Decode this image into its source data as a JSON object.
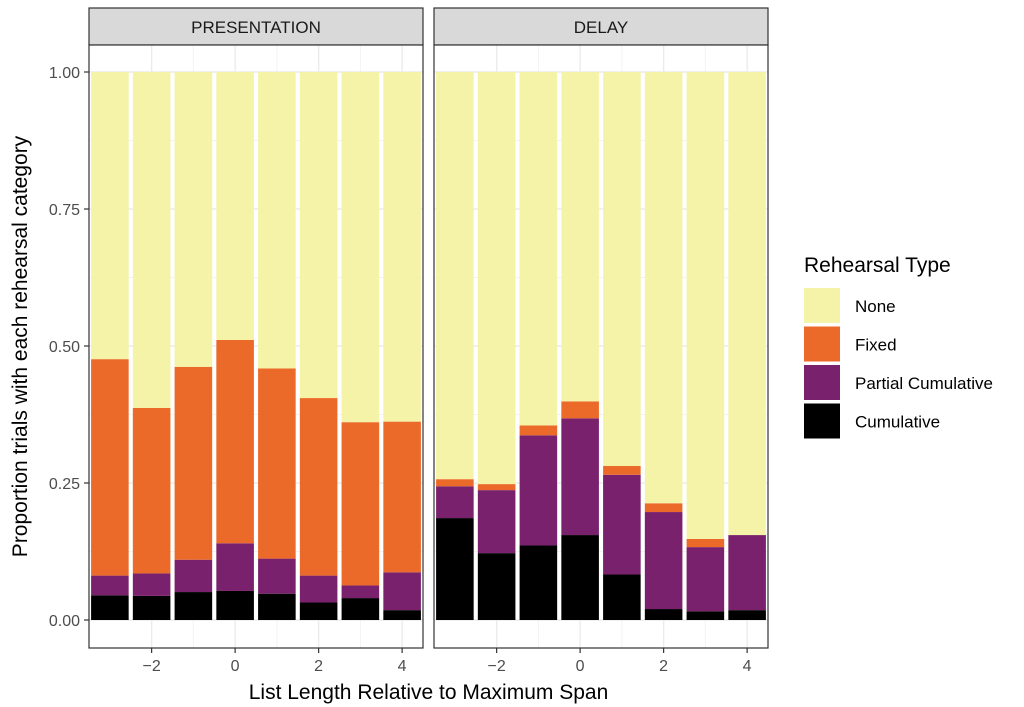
{
  "chart_data": {
    "type": "bar",
    "stacked": true,
    "facets": [
      "PRESENTATION",
      "DELAY"
    ],
    "x": [
      -3,
      -2,
      -1,
      0,
      1,
      2,
      3,
      4
    ],
    "xticks": [
      -2,
      0,
      2,
      4
    ],
    "xtick_labels": [
      "−2",
      "0",
      "2",
      "4"
    ],
    "xlim": [
      -3.5,
      4.5
    ],
    "ylim": [
      0,
      1
    ],
    "yticks": [
      0,
      0.25,
      0.5,
      0.75,
      1
    ],
    "ytick_labels": [
      "0.00",
      "0.25",
      "0.50",
      "0.75",
      "1.00"
    ],
    "xlabel": "List Length Relative to Maximum Span",
    "ylabel": "Proportion trials with each rehearsal category",
    "grid": true,
    "legend": {
      "title": "Rehearsal Type",
      "position": "right",
      "entries": [
        "None",
        "Fixed",
        "Partial Cumulative",
        "Cumulative"
      ]
    },
    "colors": {
      "None": "#f5f3a8",
      "Fixed": "#ec6a29",
      "Partial Cumulative": "#79216d",
      "Cumulative": "#000000"
    },
    "series": {
      "PRESENTATION": {
        "Cumulative": [
          0.045,
          0.044,
          0.051,
          0.053,
          0.048,
          0.032,
          0.04,
          0.018
        ],
        "Partial Cumulative": [
          0.036,
          0.041,
          0.059,
          0.087,
          0.064,
          0.049,
          0.023,
          0.069
        ],
        "Fixed": [
          0.395,
          0.302,
          0.352,
          0.371,
          0.347,
          0.324,
          0.298,
          0.275
        ],
        "None": [
          0.524,
          0.613,
          0.538,
          0.489,
          0.541,
          0.595,
          0.639,
          0.638
        ]
      },
      "DELAY": {
        "Cumulative": [
          0.186,
          0.122,
          0.136,
          0.155,
          0.083,
          0.02,
          0.016,
          0.018
        ],
        "Partial Cumulative": [
          0.058,
          0.115,
          0.201,
          0.213,
          0.182,
          0.177,
          0.117,
          0.137
        ],
        "Fixed": [
          0.013,
          0.011,
          0.018,
          0.031,
          0.016,
          0.016,
          0.015,
          0.0
        ],
        "None": [
          0.743,
          0.752,
          0.645,
          0.601,
          0.719,
          0.787,
          0.852,
          0.845
        ]
      }
    }
  }
}
